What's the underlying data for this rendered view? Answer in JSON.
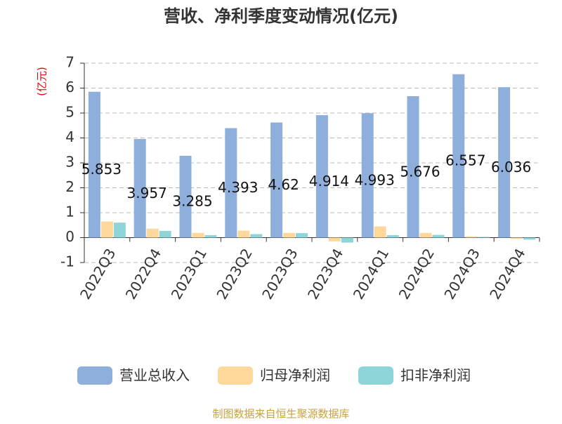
{
  "chart_data": {
    "type": "bar",
    "title": "营收、净利季度变动情况(亿元)",
    "y_axis_label": "(亿元)",
    "source": "制图数据来自恒生聚源数据库",
    "categories": [
      "2022Q3",
      "2022Q4",
      "2023Q1",
      "2023Q2",
      "2023Q3",
      "2023Q4",
      "2024Q1",
      "2024Q2",
      "2024Q3",
      "2024Q4"
    ],
    "series": [
      {
        "name": "营业总收入",
        "color": "#8eaedc",
        "values": [
          5.853,
          3.957,
          3.285,
          4.393,
          4.62,
          4.914,
          4.993,
          5.676,
          6.557,
          6.036
        ]
      },
      {
        "name": "归母净利润",
        "color": "#fdd89a",
        "values": [
          0.65,
          0.36,
          0.19,
          0.28,
          0.19,
          -0.15,
          0.45,
          0.19,
          0.05,
          -0.05
        ]
      },
      {
        "name": "扣非净利润",
        "color": "#8dd5d8",
        "values": [
          0.6,
          0.27,
          0.1,
          0.14,
          0.18,
          -0.2,
          0.1,
          0.11,
          0.03,
          -0.08
        ]
      }
    ],
    "ylim": [
      -1,
      7
    ],
    "yticks": [
      -1,
      0,
      1,
      2,
      3,
      4,
      5,
      6,
      7
    ],
    "grid": true
  }
}
